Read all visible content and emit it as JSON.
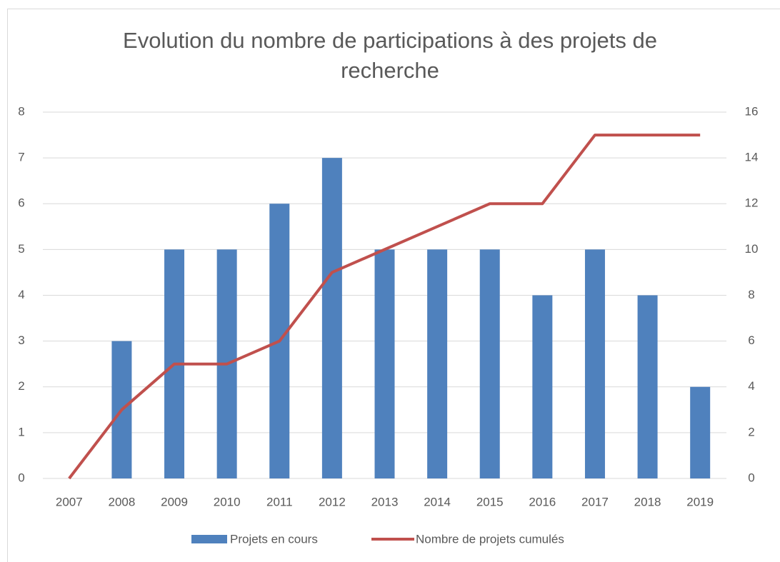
{
  "chart_data": {
    "type": "bar",
    "title": "Evolution du nombre de participations à des projets de recherche",
    "categories": [
      "2007",
      "2008",
      "2009",
      "2010",
      "2011",
      "2012",
      "2013",
      "2014",
      "2015",
      "2016",
      "2017",
      "2018",
      "2019"
    ],
    "series": [
      {
        "name": "Projets en cours",
        "type": "bar",
        "color": "#4f81bd",
        "values": [
          0,
          3,
          5,
          5,
          6,
          7,
          5,
          5,
          5,
          4,
          5,
          4,
          2
        ]
      },
      {
        "name": "Nombre de projets cumulés",
        "type": "line",
        "axis": "y2",
        "color": "#c0504d",
        "values": [
          0,
          3,
          5,
          5,
          6,
          9,
          10,
          11,
          12,
          12,
          15,
          15,
          15
        ]
      }
    ],
    "ylim": [
      0,
      8
    ],
    "yticks": [
      0,
      1,
      2,
      3,
      4,
      5,
      6,
      7,
      8
    ],
    "y2lim": [
      0,
      16
    ],
    "y2ticks": [
      0,
      2,
      4,
      6,
      8,
      10,
      12,
      14,
      16
    ],
    "grid": true,
    "legend": "bottom"
  }
}
